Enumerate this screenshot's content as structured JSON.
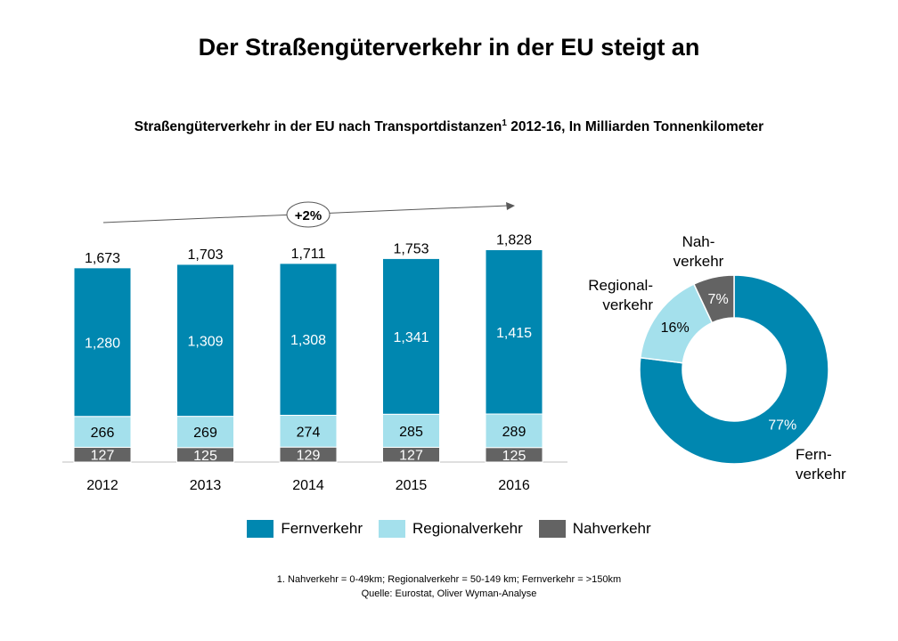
{
  "title": "Der Straßengüterverkehr in der EU steigt an",
  "subtitle": "Straßengüterverkehr in der EU nach Transportdistanzen",
  "subtitle_sup": "1",
  "subtitle_rest": " 2012-16, In Milliarden Tonnenkilometer",
  "growth_label": "+2%",
  "colors": {
    "fern": "#0087b0",
    "regional": "#a4e0ec",
    "nah": "#636363"
  },
  "chart_data": [
    {
      "type": "bar",
      "categories": [
        "2012",
        "2013",
        "2014",
        "2015",
        "2016"
      ],
      "totals": [
        "1,673",
        "1,703",
        "1,711",
        "1,753",
        "1,828"
      ],
      "series": [
        {
          "name": "Fernverkehr",
          "values": [
            1280,
            1309,
            1308,
            1341,
            1415
          ],
          "labels": [
            "1,280",
            "1,309",
            "1,308",
            "1,341",
            "1,415"
          ]
        },
        {
          "name": "Regionalverkehr",
          "values": [
            266,
            269,
            274,
            285,
            289
          ],
          "labels": [
            "266",
            "269",
            "274",
            "285",
            "289"
          ]
        },
        {
          "name": "Nahverkehr",
          "values": [
            127,
            125,
            129,
            127,
            125
          ],
          "labels": [
            "127",
            "125",
            "129",
            "127",
            "125"
          ]
        }
      ]
    },
    {
      "type": "pie",
      "slices": [
        {
          "name": "Fernverkehr",
          "value": 77,
          "label": "77%",
          "outer_label": [
            "Fern-",
            "verkehr"
          ]
        },
        {
          "name": "Regionalverkehr",
          "value": 16,
          "label": "16%",
          "outer_label": [
            "Regional-",
            "verkehr"
          ]
        },
        {
          "name": "Nahverkehr",
          "value": 7,
          "label": "7%",
          "outer_label": [
            "Nah-",
            "verkehr"
          ]
        }
      ]
    }
  ],
  "legend": [
    "Fernverkehr",
    "Regionalverkehr",
    "Nahverkehr"
  ],
  "footnote_1": "1. Nahverkehr = 0-49km; Regionalverkehr = 50-149 km; Fernverkehr = >150km",
  "footnote_2": "Quelle: Eurostat, Oliver Wyman-Analyse"
}
